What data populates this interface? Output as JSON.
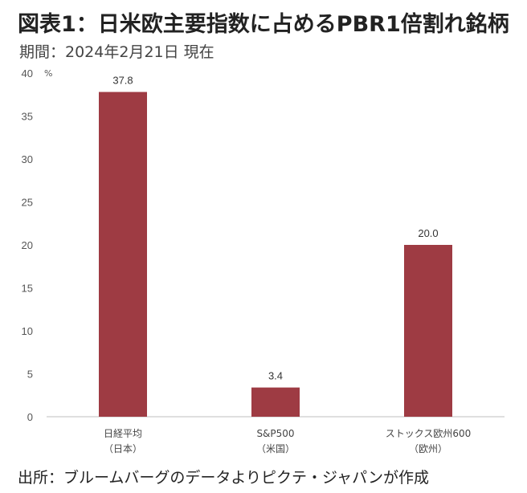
{
  "title": "図表1：日米欧主要指数に占めるPBR1倍割れ銘柄",
  "period": "期間：2024年2月21日 現在",
  "source": "出所：ブルームバーグのデータよりピクテ・ジャパンが作成",
  "chart_data": {
    "type": "bar",
    "categories": [
      [
        "日経平均",
        "（日本）"
      ],
      [
        "S&P500",
        "（米国）"
      ],
      [
        "ストックス欧州600",
        "（欧州）"
      ]
    ],
    "values": [
      37.8,
      3.4,
      20.0
    ],
    "value_labels": [
      "37.8",
      "3.4",
      "20.0"
    ],
    "yunit": "%",
    "ylim": [
      0,
      40
    ],
    "yticks": [
      0,
      5,
      10,
      15,
      20,
      25,
      30,
      35,
      40
    ],
    "bar_color": "#9e3b43",
    "grid": false
  }
}
